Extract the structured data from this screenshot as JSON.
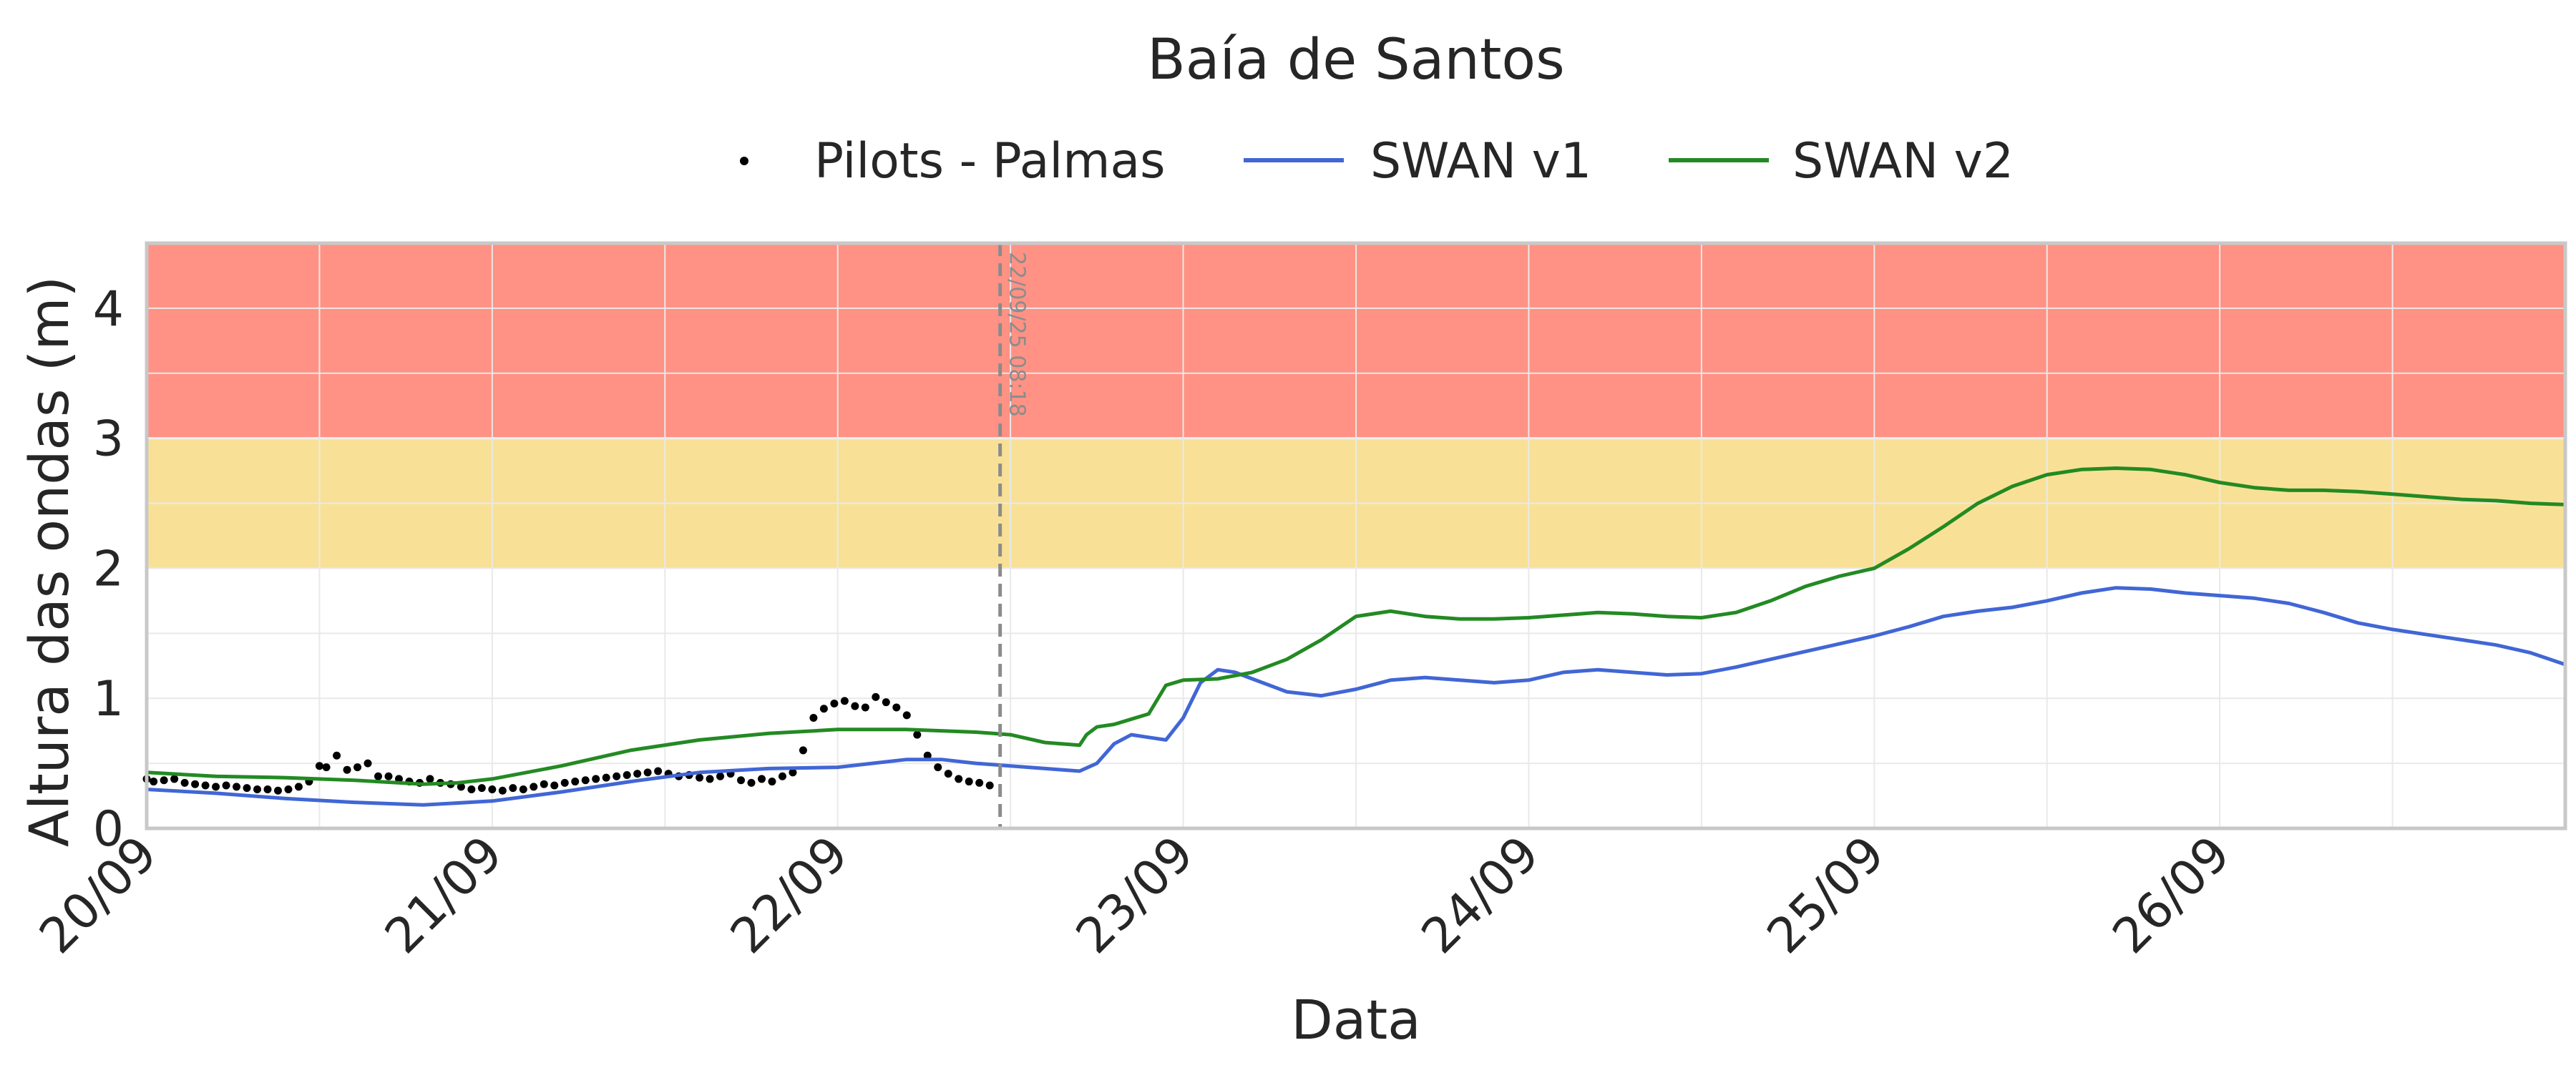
{
  "chart_data": {
    "type": "line",
    "title": "Baía de Santos",
    "xlabel": "Data",
    "ylabel": "Altura das ondas (m)",
    "x_unit": "days after 20/09 00:00",
    "xlim": [
      0,
      7.0
    ],
    "ylim": [
      0,
      4.5
    ],
    "x_ticks": [
      {
        "x": 0,
        "label": "20/09"
      },
      {
        "x": 1,
        "label": "21/09"
      },
      {
        "x": 2,
        "label": "22/09"
      },
      {
        "x": 3,
        "label": "23/09"
      },
      {
        "x": 4,
        "label": "24/09"
      },
      {
        "x": 5,
        "label": "25/09"
      },
      {
        "x": 6,
        "label": "26/09"
      }
    ],
    "y_ticks": [
      0,
      1,
      2,
      3,
      4
    ],
    "grid": true,
    "legend_position": "top-center",
    "bands": [
      {
        "from": 2,
        "to": 3,
        "color": "#F8E196"
      },
      {
        "from": 3,
        "to": 4.5,
        "color": "#FF9284"
      }
    ],
    "now_marker": {
      "x": 2.47,
      "label": "22/09/25 08:18",
      "color": "#8c8c8c"
    },
    "series": [
      {
        "name": "Pilots - Palmas",
        "kind": "scatter",
        "color": "#000000",
        "x": [
          0.0,
          0.02,
          0.05,
          0.08,
          0.11,
          0.14,
          0.17,
          0.2,
          0.23,
          0.26,
          0.29,
          0.32,
          0.35,
          0.38,
          0.41,
          0.44,
          0.47,
          0.5,
          0.52,
          0.55,
          0.58,
          0.61,
          0.64,
          0.67,
          0.7,
          0.73,
          0.76,
          0.79,
          0.82,
          0.85,
          0.88,
          0.91,
          0.94,
          0.97,
          1.0,
          1.03,
          1.06,
          1.09,
          1.12,
          1.15,
          1.18,
          1.21,
          1.24,
          1.27,
          1.3,
          1.33,
          1.36,
          1.39,
          1.42,
          1.45,
          1.48,
          1.51,
          1.54,
          1.57,
          1.6,
          1.63,
          1.66,
          1.69,
          1.72,
          1.75,
          1.78,
          1.81,
          1.84,
          1.87,
          1.9,
          1.93,
          1.96,
          1.99,
          2.02,
          2.05,
          2.08,
          2.11,
          2.14,
          2.17,
          2.2,
          2.23,
          2.26,
          2.29,
          2.32,
          2.35,
          2.38,
          2.41,
          2.44
        ],
        "y": [
          0.38,
          0.36,
          0.37,
          0.38,
          0.35,
          0.34,
          0.33,
          0.32,
          0.33,
          0.32,
          0.31,
          0.3,
          0.3,
          0.29,
          0.3,
          0.32,
          0.36,
          0.48,
          0.47,
          0.56,
          0.45,
          0.47,
          0.5,
          0.4,
          0.4,
          0.38,
          0.36,
          0.35,
          0.38,
          0.35,
          0.34,
          0.32,
          0.3,
          0.31,
          0.3,
          0.29,
          0.31,
          0.3,
          0.32,
          0.34,
          0.33,
          0.35,
          0.36,
          0.37,
          0.38,
          0.39,
          0.4,
          0.41,
          0.42,
          0.43,
          0.44,
          0.42,
          0.4,
          0.41,
          0.39,
          0.38,
          0.4,
          0.42,
          0.37,
          0.35,
          0.38,
          0.36,
          0.4,
          0.43,
          0.6,
          0.85,
          0.92,
          0.96,
          0.98,
          0.94,
          0.93,
          1.01,
          0.97,
          0.93,
          0.87,
          0.72,
          0.56,
          0.47,
          0.42,
          0.38,
          0.36,
          0.35,
          0.33
        ]
      },
      {
        "name": "SWAN v1",
        "kind": "line",
        "color": "#4166D5",
        "x": [
          0.0,
          0.2,
          0.4,
          0.6,
          0.8,
          1.0,
          1.2,
          1.4,
          1.6,
          1.8,
          2.0,
          2.1,
          2.2,
          2.3,
          2.4,
          2.5,
          2.6,
          2.7,
          2.75,
          2.8,
          2.85,
          2.9,
          2.95,
          3.0,
          3.05,
          3.1,
          3.15,
          3.2,
          3.3,
          3.4,
          3.5,
          3.6,
          3.7,
          3.8,
          3.9,
          4.0,
          4.1,
          4.2,
          4.3,
          4.4,
          4.5,
          4.6,
          4.7,
          4.8,
          4.9,
          5.0,
          5.1,
          5.2,
          5.3,
          5.4,
          5.5,
          5.6,
          5.7,
          5.8,
          5.9,
          6.0,
          6.1,
          6.2,
          6.3,
          6.4,
          6.5,
          6.6,
          6.7,
          6.8,
          6.9,
          7.0
        ],
        "y": [
          0.3,
          0.27,
          0.23,
          0.2,
          0.18,
          0.21,
          0.28,
          0.36,
          0.43,
          0.46,
          0.47,
          0.5,
          0.53,
          0.53,
          0.5,
          0.48,
          0.46,
          0.44,
          0.5,
          0.65,
          0.72,
          0.7,
          0.68,
          0.85,
          1.12,
          1.22,
          1.2,
          1.15,
          1.05,
          1.02,
          1.07,
          1.14,
          1.16,
          1.14,
          1.12,
          1.14,
          1.2,
          1.22,
          1.2,
          1.18,
          1.19,
          1.24,
          1.3,
          1.36,
          1.42,
          1.48,
          1.55,
          1.63,
          1.67,
          1.7,
          1.75,
          1.81,
          1.85,
          1.84,
          1.81,
          1.79,
          1.77,
          1.73,
          1.66,
          1.58,
          1.53,
          1.49,
          1.45,
          1.41,
          1.35,
          1.26
        ]
      },
      {
        "name": "SWAN v2",
        "kind": "line",
        "color": "#238A23",
        "x": [
          0.0,
          0.2,
          0.4,
          0.6,
          0.8,
          0.9,
          1.0,
          1.2,
          1.4,
          1.6,
          1.8,
          2.0,
          2.2,
          2.4,
          2.5,
          2.6,
          2.7,
          2.72,
          2.75,
          2.8,
          2.85,
          2.9,
          2.95,
          3.0,
          3.1,
          3.2,
          3.3,
          3.4,
          3.5,
          3.6,
          3.7,
          3.8,
          3.9,
          4.0,
          4.1,
          4.2,
          4.3,
          4.4,
          4.5,
          4.6,
          4.7,
          4.8,
          4.9,
          5.0,
          5.1,
          5.2,
          5.3,
          5.4,
          5.5,
          5.6,
          5.7,
          5.8,
          5.9,
          6.0,
          6.1,
          6.2,
          6.3,
          6.4,
          6.5,
          6.6,
          6.7,
          6.8,
          6.9,
          7.0
        ],
        "y": [
          0.43,
          0.4,
          0.39,
          0.37,
          0.34,
          0.35,
          0.38,
          0.48,
          0.6,
          0.68,
          0.73,
          0.76,
          0.76,
          0.74,
          0.72,
          0.66,
          0.64,
          0.72,
          0.78,
          0.8,
          0.84,
          0.88,
          1.1,
          1.14,
          1.15,
          1.2,
          1.3,
          1.45,
          1.63,
          1.67,
          1.63,
          1.61,
          1.61,
          1.62,
          1.64,
          1.66,
          1.65,
          1.63,
          1.62,
          1.66,
          1.75,
          1.86,
          1.94,
          2.0,
          2.15,
          2.32,
          2.5,
          2.63,
          2.72,
          2.76,
          2.77,
          2.76,
          2.72,
          2.66,
          2.62,
          2.6,
          2.6,
          2.59,
          2.57,
          2.55,
          2.53,
          2.52,
          2.5,
          2.49
        ]
      }
    ]
  }
}
